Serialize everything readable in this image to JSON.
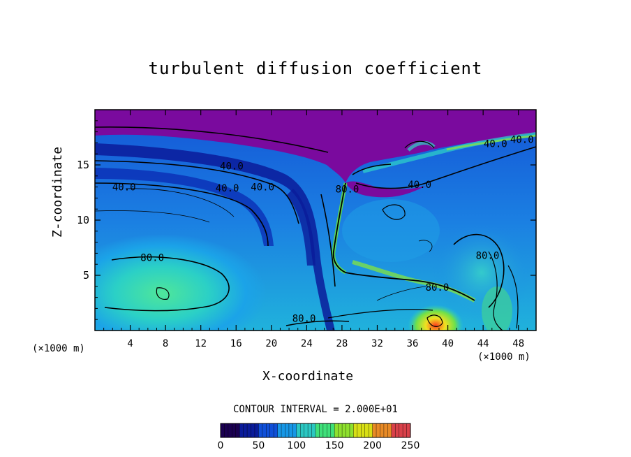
{
  "chart_data": {
    "type": "heatmap",
    "title": "turbulent diffusion coefficient",
    "xlabel": "X-coordinate",
    "ylabel": "Z-coordinate",
    "x_unit_label": "(×1000 m)",
    "z_unit_label": "(×1000 m)",
    "xlim": [
      0,
      50
    ],
    "ylim": [
      0,
      20
    ],
    "x_ticks": [
      4,
      8,
      12,
      16,
      20,
      24,
      28,
      32,
      36,
      40,
      44,
      48
    ],
    "y_ticks": [
      5,
      10,
      15
    ],
    "contour_interval_text": "CONTOUR INTERVAL = 2.000E+01",
    "colorbar": {
      "range": [
        0,
        250
      ],
      "ticks": [
        0,
        50,
        100,
        150,
        200,
        250
      ],
      "colors": [
        "#1a0050",
        "#0a1b9a",
        "#0f4fd8",
        "#1797e6",
        "#2bc7c2",
        "#3fe07a",
        "#8ee02e",
        "#d8df15",
        "#e88a25",
        "#d9414a"
      ]
    },
    "contour_labels": [
      {
        "text": "40.0",
        "x": 15.5,
        "y": 14.6
      },
      {
        "text": "40.0",
        "x": 15.0,
        "y": 12.6
      },
      {
        "text": "40.0",
        "x": 19.0,
        "y": 12.7
      },
      {
        "text": "40.0",
        "x": 3.3,
        "y": 12.7
      },
      {
        "text": "80.0",
        "x": 6.5,
        "y": 6.3
      },
      {
        "text": "80.0",
        "x": 23.7,
        "y": 0.8
      },
      {
        "text": "80.0",
        "x": 38.8,
        "y": 3.6
      },
      {
        "text": "80.0",
        "x": 44.5,
        "y": 6.5
      },
      {
        "text": "80.0",
        "x": 28.6,
        "y": 12.5
      },
      {
        "text": "40.0",
        "x": 48.4,
        "y": 17.0
      },
      {
        "text": "40.0",
        "x": 45.4,
        "y": 16.6
      },
      {
        "text": "40.0",
        "x": 36.8,
        "y": 12.9
      }
    ]
  }
}
